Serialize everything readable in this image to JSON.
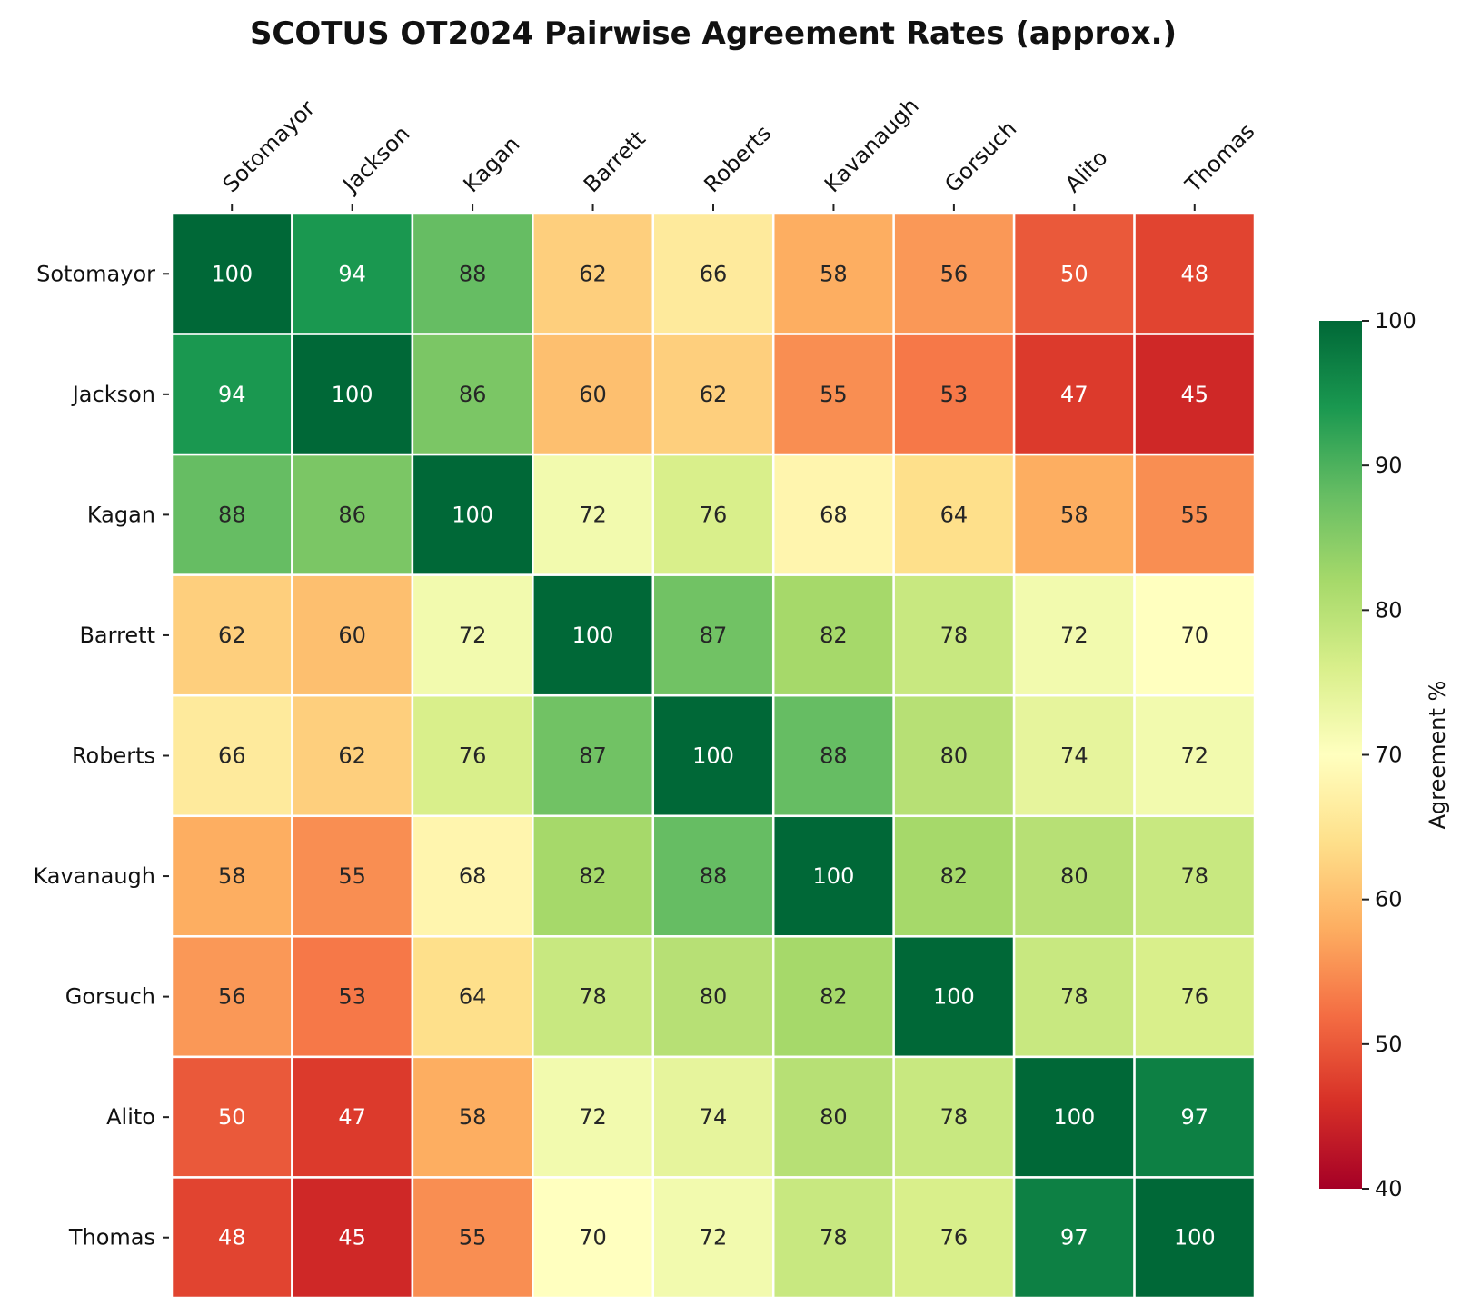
{
  "chart_data": {
    "type": "heatmap",
    "title": "SCOTUS OT2024 Pairwise Agreement Rates (approx.)",
    "justices": [
      "Sotomayor",
      "Jackson",
      "Kagan",
      "Barrett",
      "Roberts",
      "Kavanaugh",
      "Gorsuch",
      "Alito",
      "Thomas"
    ],
    "matrix": [
      [
        100,
        94,
        88,
        62,
        66,
        58,
        56,
        50,
        48
      ],
      [
        94,
        100,
        86,
        60,
        62,
        55,
        53,
        47,
        45
      ],
      [
        88,
        86,
        100,
        72,
        76,
        68,
        64,
        58,
        55
      ],
      [
        62,
        60,
        72,
        100,
        87,
        82,
        78,
        72,
        70
      ],
      [
        66,
        62,
        76,
        87,
        100,
        88,
        80,
        74,
        72
      ],
      [
        58,
        55,
        68,
        82,
        88,
        100,
        82,
        80,
        78
      ],
      [
        56,
        53,
        64,
        78,
        80,
        82,
        100,
        78,
        76
      ],
      [
        50,
        47,
        58,
        72,
        74,
        80,
        78,
        100,
        97
      ],
      [
        48,
        45,
        55,
        70,
        72,
        78,
        76,
        97,
        100
      ]
    ],
    "colormap": "RdYlGn",
    "vmin": 40,
    "vmax": 100,
    "colorbar": {
      "label": "Agreement %",
      "ticks": [
        40,
        50,
        60,
        70,
        80,
        90,
        100
      ]
    },
    "xlabel": "",
    "ylabel": "",
    "x_tick_position": "top"
  }
}
